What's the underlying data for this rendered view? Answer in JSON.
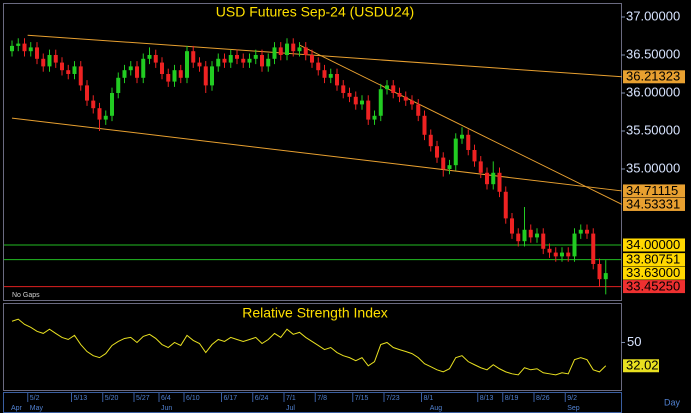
{
  "chart_data": {
    "type": "candlestick",
    "title": "USD Futures  Sep-24  (USDU24)",
    "note": "No Gaps",
    "x_unit": "Day",
    "up_color": "#22cc22",
    "down_color": "#ee2222",
    "ylim": [
      33.276,
      37.171
    ],
    "yticks": [
      {
        "value": 35,
        "label": "35.00000"
      },
      {
        "value": 35.5,
        "label": "35.50000"
      },
      {
        "value": 36,
        "label": "36.00000"
      },
      {
        "value": 36.5,
        "label": "36.50000"
      },
      {
        "value": 37,
        "label": "37.00000"
      }
    ],
    "categories": [
      null,
      null,
      null,
      "5/2",
      null,
      null,
      null,
      null,
      null,
      null,
      "5/13",
      null,
      null,
      null,
      null,
      "5/20",
      null,
      null,
      null,
      null,
      "5/27",
      null,
      null,
      null,
      "6/4",
      null,
      null,
      null,
      "6/10",
      null,
      null,
      null,
      null,
      null,
      "6/17",
      null,
      null,
      null,
      null,
      "6/24",
      null,
      null,
      null,
      null,
      "7/1",
      null,
      null,
      null,
      null,
      "7/8",
      null,
      null,
      null,
      null,
      null,
      "7/15",
      null,
      null,
      null,
      null,
      "7/23",
      null,
      null,
      null,
      null,
      null,
      "8/1",
      null,
      null,
      null,
      null,
      null,
      null,
      null,
      null,
      "8/13",
      null,
      null,
      null,
      "8/19",
      null,
      null,
      null,
      null,
      "8/26",
      null,
      null,
      null,
      null,
      "9/2",
      null,
      null,
      null,
      null,
      null,
      null
    ],
    "months": [
      "Apr",
      null,
      null,
      "May",
      null,
      null,
      null,
      null,
      null,
      null,
      null,
      null,
      null,
      null,
      null,
      null,
      null,
      null,
      null,
      null,
      null,
      null,
      null,
      null,
      "Jun",
      null,
      null,
      null,
      null,
      null,
      null,
      null,
      null,
      null,
      null,
      null,
      null,
      null,
      null,
      null,
      null,
      null,
      null,
      null,
      "Jul",
      null,
      null,
      null,
      null,
      null,
      null,
      null,
      null,
      null,
      null,
      null,
      null,
      null,
      null,
      null,
      null,
      null,
      null,
      null,
      null,
      null,
      null,
      "Aug",
      null,
      null,
      null,
      null,
      null,
      null,
      null,
      null,
      null,
      null,
      null,
      null,
      null,
      null,
      null,
      null,
      null,
      null,
      null,
      null,
      null,
      "Sep",
      null,
      null,
      null,
      null,
      null,
      null
    ],
    "open": [
      36.55,
      36.62,
      36.65,
      36.55,
      36.6,
      36.45,
      36.35,
      36.5,
      36.4,
      36.3,
      36.25,
      36.35,
      36.1,
      35.9,
      35.8,
      35.65,
      35.7,
      36.0,
      36.2,
      36.3,
      36.35,
      36.2,
      36.45,
      36.5,
      36.4,
      36.25,
      36.15,
      36.3,
      36.2,
      36.55,
      36.4,
      36.35,
      36.1,
      36.35,
      36.45,
      36.4,
      36.5,
      36.45,
      36.4,
      36.45,
      36.5,
      36.35,
      36.45,
      36.6,
      36.5,
      36.65,
      36.55,
      36.6,
      36.5,
      36.4,
      36.3,
      36.2,
      36.25,
      36.1,
      36.0,
      35.95,
      35.85,
      35.9,
      35.65,
      35.7,
      36.05,
      36.1,
      36.0,
      35.95,
      35.9,
      35.85,
      35.7,
      35.45,
      35.3,
      35.15,
      35.0,
      35.05,
      35.4,
      35.45,
      35.25,
      35.1,
      34.95,
      34.8,
      34.95,
      34.7,
      34.35,
      34.15,
      34.05,
      34.2,
      34.1,
      34.15,
      33.95,
      33.9,
      33.85,
      33.9,
      33.85,
      34.15,
      34.2,
      34.15,
      33.75,
      33.55
    ],
    "high": [
      36.69,
      36.72,
      36.72,
      36.67,
      36.67,
      36.52,
      36.57,
      36.57,
      36.47,
      36.37,
      36.42,
      36.42,
      36.17,
      35.97,
      35.87,
      35.77,
      36.07,
      36.27,
      36.37,
      36.42,
      36.42,
      36.52,
      36.6,
      36.57,
      36.47,
      36.32,
      36.37,
      36.37,
      36.62,
      36.62,
      36.47,
      36.42,
      36.42,
      36.52,
      36.52,
      36.57,
      36.57,
      36.52,
      36.52,
      36.57,
      36.57,
      36.52,
      36.67,
      36.67,
      36.72,
      36.72,
      36.67,
      36.67,
      36.57,
      36.47,
      36.37,
      36.32,
      36.32,
      36.17,
      36.07,
      36.02,
      35.97,
      35.97,
      35.77,
      36.12,
      36.17,
      36.17,
      36.07,
      36.02,
      35.97,
      35.92,
      35.77,
      35.52,
      35.37,
      35.22,
      35.12,
      35.47,
      35.55,
      35.52,
      35.32,
      35.17,
      35.02,
      35.1,
      35.02,
      34.77,
      34.42,
      34.22,
      34.5,
      34.27,
      34.22,
      34.22,
      34.02,
      33.97,
      33.97,
      33.97,
      34.22,
      34.27,
      34.27,
      34.22,
      33.82,
      33.8
    ],
    "low": [
      36.48,
      36.55,
      36.48,
      36.48,
      36.38,
      36.28,
      36.28,
      36.33,
      36.23,
      36.18,
      36.18,
      36.03,
      35.83,
      35.73,
      35.5,
      35.58,
      35.63,
      35.93,
      36.13,
      36.23,
      36.13,
      36.13,
      36.38,
      36.33,
      36.18,
      36.08,
      36.08,
      36.13,
      36.13,
      36.33,
      36.28,
      36.0,
      36.03,
      36.28,
      36.33,
      36.33,
      36.38,
      36.33,
      36.33,
      36.38,
      36.28,
      36.28,
      36.38,
      36.43,
      36.43,
      36.48,
      36.48,
      36.43,
      36.33,
      36.23,
      36.13,
      36.13,
      36.03,
      35.93,
      35.88,
      35.78,
      35.78,
      35.58,
      35.58,
      35.63,
      35.98,
      35.93,
      35.88,
      35.83,
      35.78,
      35.63,
      35.38,
      35.23,
      35.08,
      34.9,
      34.93,
      34.98,
      35.33,
      35.18,
      35.03,
      34.88,
      34.73,
      34.73,
      34.63,
      34.28,
      34.08,
      33.98,
      33.98,
      34.03,
      34.03,
      33.88,
      33.83,
      33.78,
      33.78,
      33.78,
      33.78,
      34.08,
      34.08,
      33.68,
      33.45,
      33.35
    ],
    "close": [
      36.62,
      36.65,
      36.55,
      36.6,
      36.45,
      36.35,
      36.5,
      36.4,
      36.3,
      36.25,
      36.35,
      36.1,
      35.9,
      35.8,
      35.65,
      35.7,
      36.0,
      36.2,
      36.3,
      36.35,
      36.2,
      36.45,
      36.5,
      36.4,
      36.25,
      36.15,
      36.3,
      36.2,
      36.55,
      36.4,
      36.35,
      36.1,
      36.35,
      36.45,
      36.4,
      36.5,
      36.45,
      36.4,
      36.45,
      36.5,
      36.35,
      36.45,
      36.6,
      36.5,
      36.65,
      36.55,
      36.6,
      36.5,
      36.4,
      36.3,
      36.2,
      36.25,
      36.1,
      36.0,
      35.95,
      35.85,
      35.9,
      35.65,
      35.7,
      36.05,
      36.1,
      36.0,
      35.95,
      35.9,
      35.85,
      35.7,
      35.45,
      35.3,
      35.15,
      35.0,
      35.05,
      35.4,
      35.45,
      35.25,
      35.1,
      34.95,
      34.8,
      34.95,
      34.7,
      34.35,
      34.15,
      34.05,
      34.2,
      34.1,
      34.15,
      33.95,
      33.9,
      33.85,
      33.9,
      33.85,
      34.15,
      34.2,
      34.15,
      33.75,
      33.55,
      33.63
    ],
    "trendlines": [
      {
        "start": [
          2.5,
          36.76
        ],
        "end": [
          97.6,
          36.21323
        ],
        "label": "36.21323",
        "color": "#e8a030"
      },
      {
        "start": [
          0,
          35.67
        ],
        "end": [
          97.6,
          34.71115
        ],
        "label": "34.71115",
        "color": "#e8a030"
      },
      {
        "start": [
          46,
          36.63
        ],
        "end": [
          97.6,
          34.53331
        ],
        "label": "34.53331",
        "color": "#e8a030"
      }
    ],
    "hlines": [
      {
        "value": 34,
        "label": "34.00000",
        "color": "#22bb22",
        "box": "#ffd800"
      },
      {
        "value": 33.80751,
        "label": "33.80751",
        "color": "#22bb22",
        "box": "#ffd800"
      },
      {
        "value": 33.4525,
        "label": "33.45250",
        "color": "#e02020",
        "box": "#ee3030"
      }
    ],
    "last": {
      "value": 33.63,
      "label": "33.63000",
      "box": "#ffd800"
    },
    "indicator": {
      "title": "Relative Strength Index",
      "color": "#e8e020",
      "ylim": [
        13.3,
        79.7
      ],
      "yticks": [
        50
      ],
      "values": [
        66.4,
        68,
        64,
        61.7,
        58.6,
        57,
        60.2,
        57,
        53.9,
        52.3,
        55.5,
        48.4,
        43,
        39.8,
        38.3,
        41.4,
        47.7,
        50.8,
        53.1,
        53.9,
        50,
        54.7,
        56.3,
        53.1,
        48.4,
        46.1,
        50,
        47.7,
        55.5,
        51.6,
        49.2,
        42.2,
        48.4,
        52.3,
        50.8,
        53.9,
        52.3,
        50.8,
        52.3,
        53.9,
        49.2,
        52.3,
        57,
        53.9,
        60.2,
        56.3,
        57.8,
        53.9,
        50.8,
        47.7,
        44.5,
        46.1,
        42.2,
        39.8,
        38.3,
        35.9,
        38.3,
        32,
        35.2,
        48.4,
        50,
        46.1,
        44.5,
        43,
        41.4,
        38.3,
        33.6,
        31.3,
        28.9,
        27.3,
        29.7,
        38.3,
        39.8,
        35.2,
        32.8,
        30.5,
        28.9,
        32.8,
        29.7,
        27.3,
        25.8,
        25,
        30.5,
        28.9,
        29.7,
        26.6,
        25.8,
        25,
        26.6,
        25.8,
        36.7,
        38.3,
        36.7,
        28.9,
        27.3,
        32.02
      ]
    }
  }
}
